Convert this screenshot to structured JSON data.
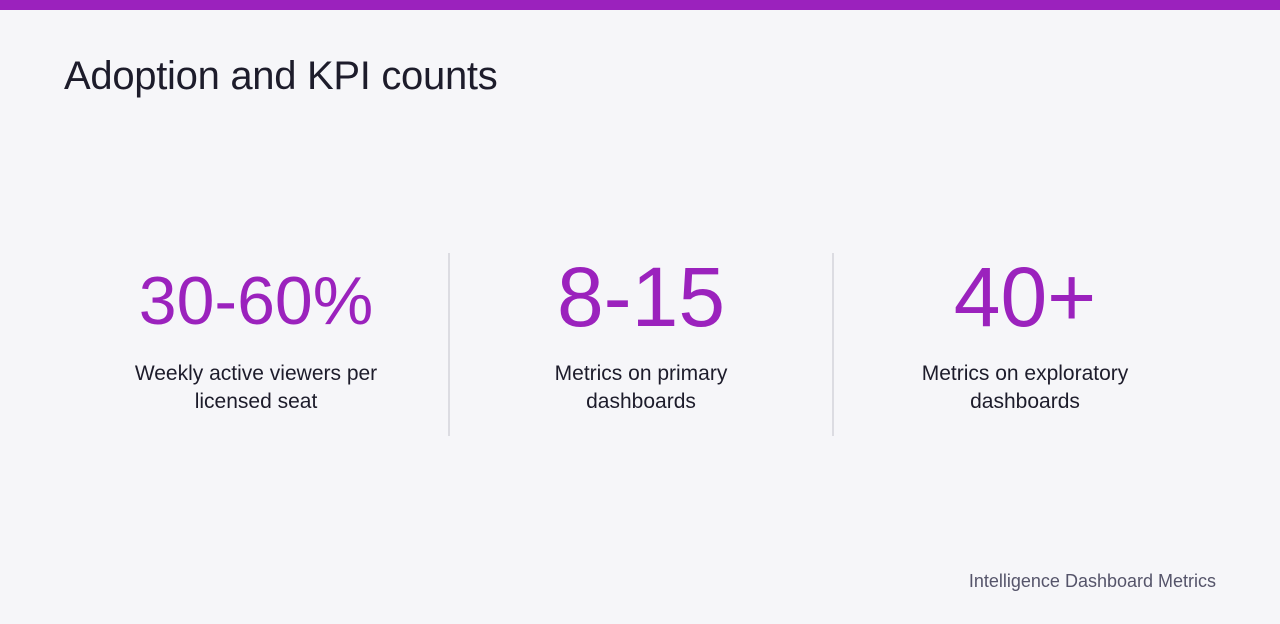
{
  "header": {
    "title": "Adoption and KPI counts"
  },
  "colors": {
    "accent": "#9b22bd",
    "background": "#f6f6f9",
    "text": "#1d1c2b",
    "muted": "#55546a",
    "divider": "#dcdce2"
  },
  "stats": [
    {
      "value": "30-60%",
      "label": "Weekly active viewers per licensed seat"
    },
    {
      "value": "8-15",
      "label": "Metrics on primary dashboards"
    },
    {
      "value": "40+",
      "label": "Metrics on exploratory dashboards"
    }
  ],
  "footer": {
    "source": "Intelligence Dashboard Metrics"
  }
}
